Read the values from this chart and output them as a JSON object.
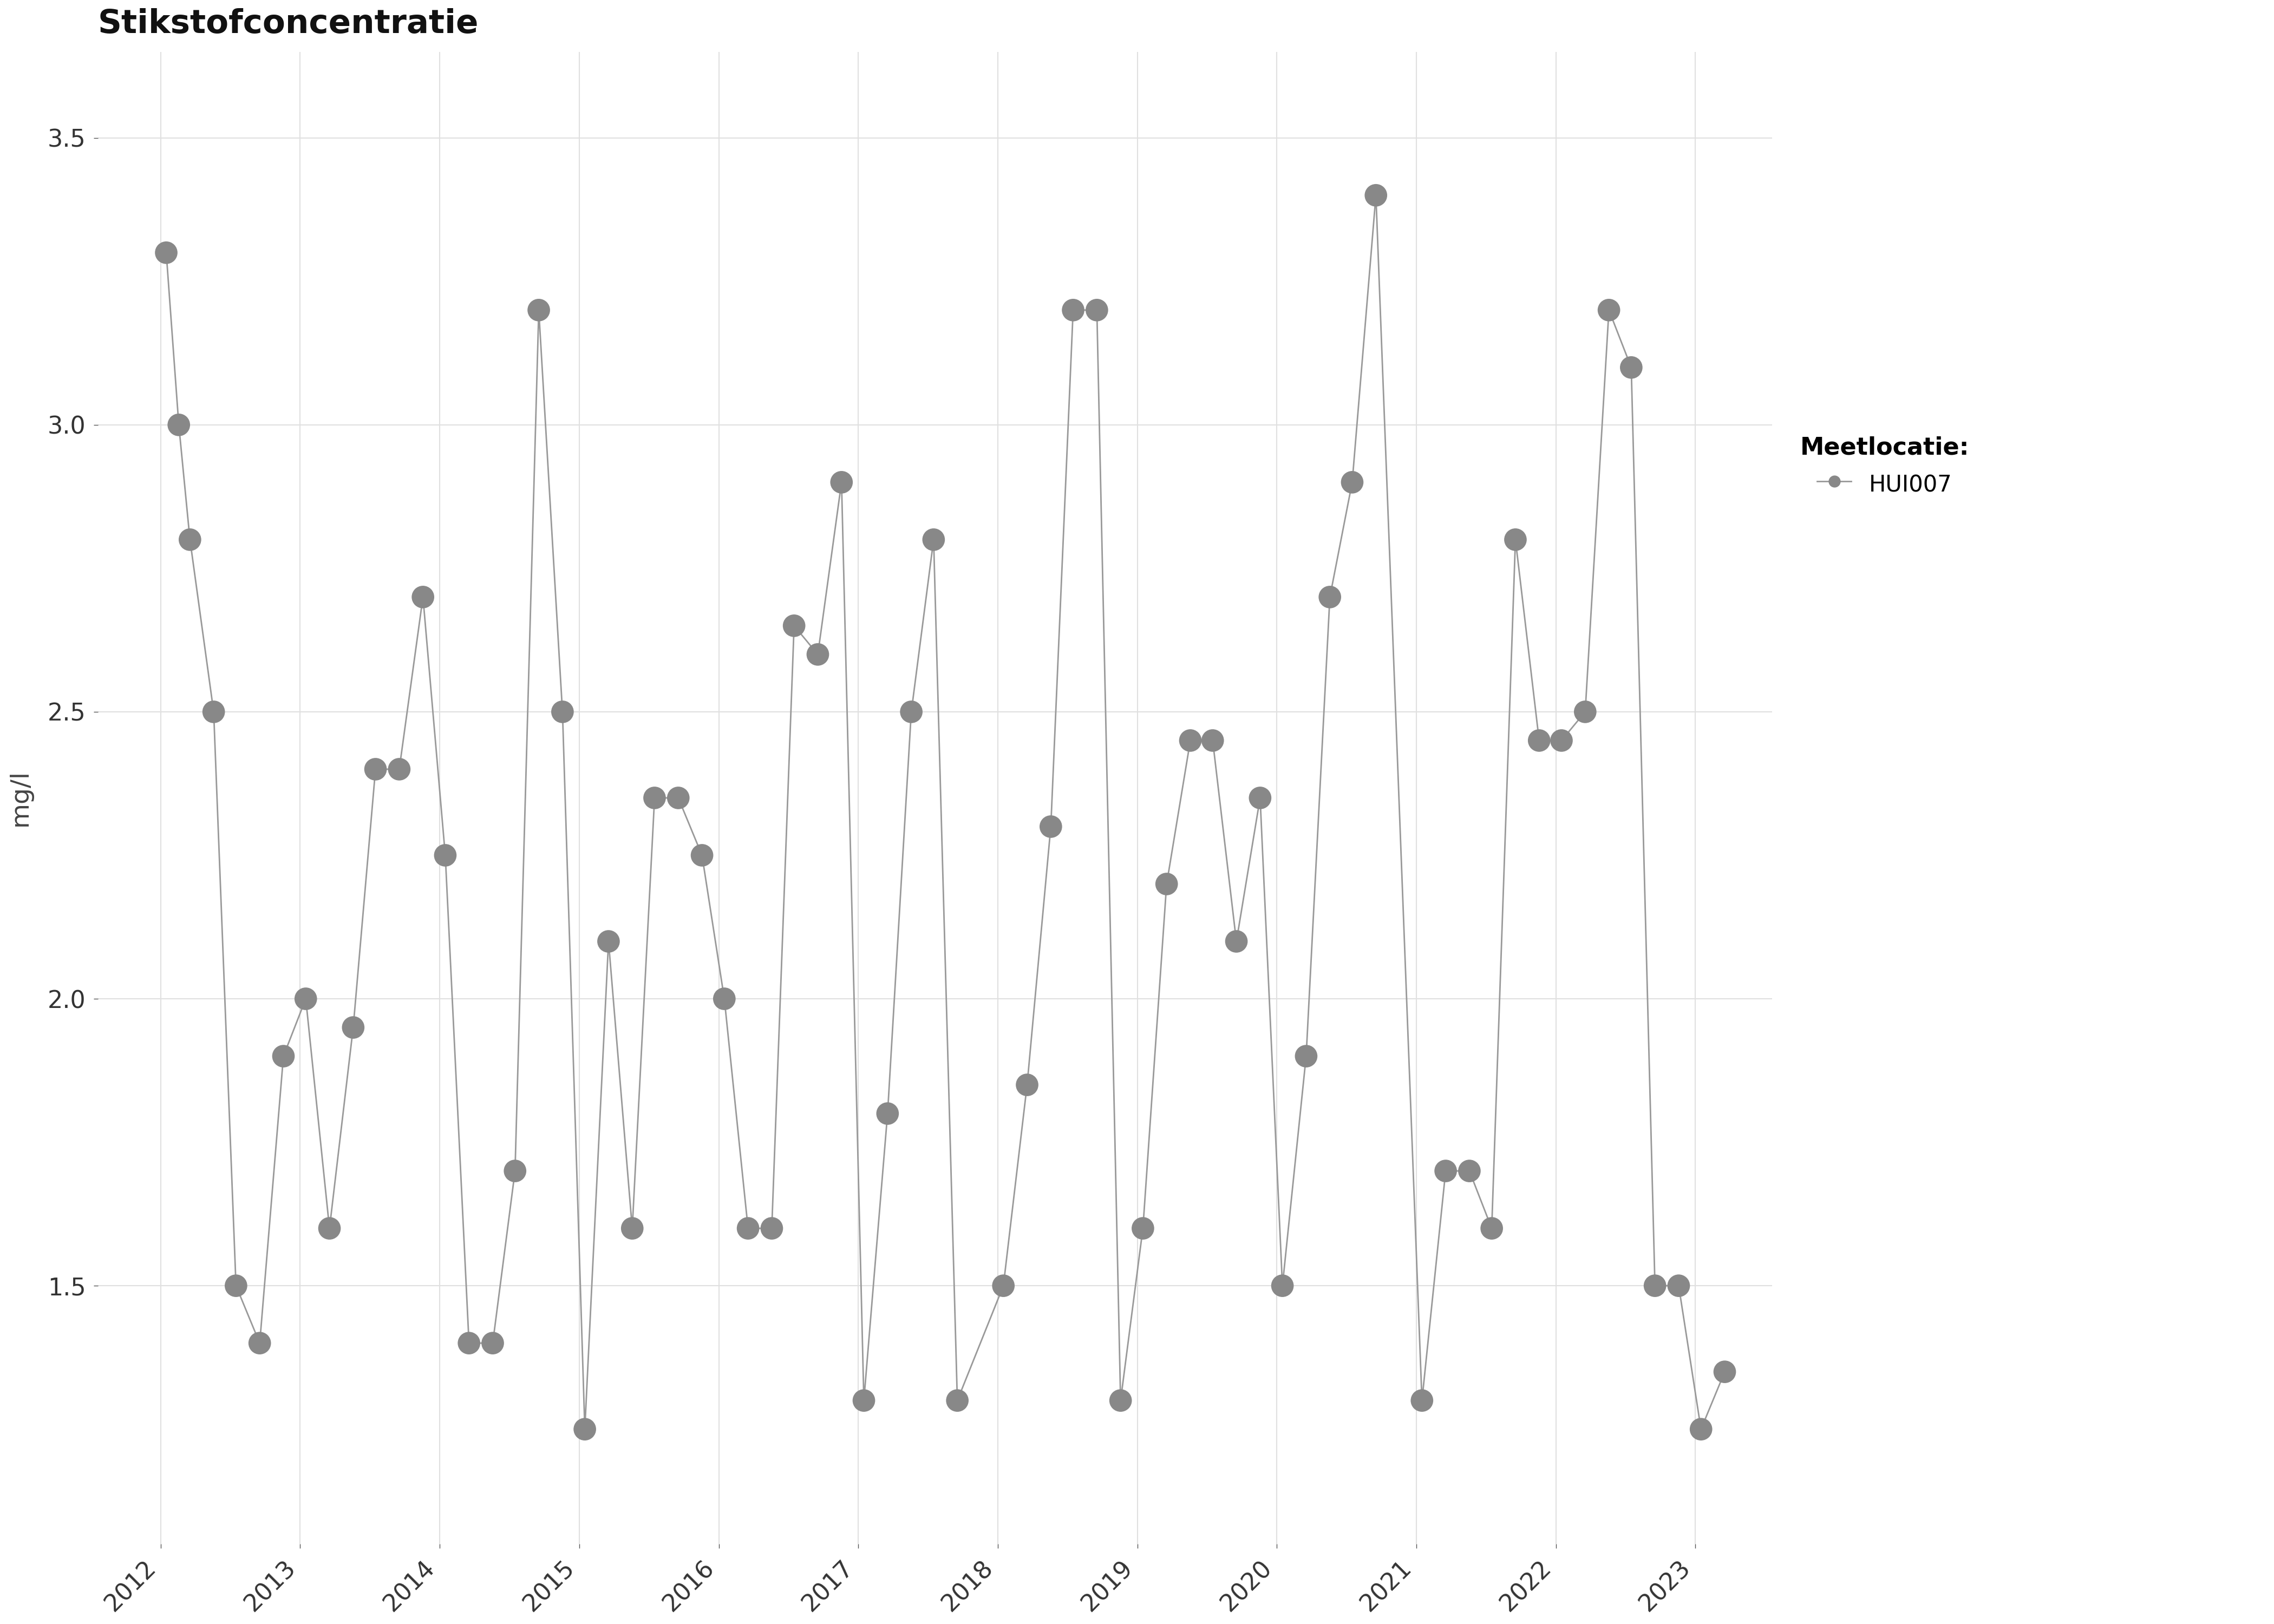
{
  "title": "Stikstofconcentratie",
  "ylabel": "mg/l",
  "legend_title": "Meetlocatie:",
  "legend_label": "HUI007",
  "background_color": "#ffffff",
  "plot_bg_color": "#ffffff",
  "grid_color": "#e0e0e0",
  "line_color": "#999999",
  "marker_color": "#888888",
  "ylim": [
    1.05,
    3.65
  ],
  "yticks": [
    1.5,
    2.0,
    2.5,
    3.0,
    3.5
  ],
  "x_values": [
    2012.04,
    2012.13,
    2012.21,
    2012.38,
    2012.54,
    2012.71,
    2012.88,
    2013.04,
    2013.21,
    2013.38,
    2013.54,
    2013.71,
    2013.88,
    2014.04,
    2014.21,
    2014.38,
    2014.54,
    2014.71,
    2014.88,
    2015.04,
    2015.21,
    2015.38,
    2015.54,
    2015.71,
    2015.88,
    2016.04,
    2016.21,
    2016.38,
    2016.54,
    2016.71,
    2016.88,
    2017.04,
    2017.21,
    2017.38,
    2017.54,
    2017.71,
    2018.04,
    2018.21,
    2018.38,
    2018.54,
    2018.71,
    2018.88,
    2019.04,
    2019.21,
    2019.38,
    2019.54,
    2019.71,
    2019.88,
    2020.04,
    2020.21,
    2020.38,
    2020.54,
    2020.71,
    2021.04,
    2021.21,
    2021.38,
    2021.54,
    2021.71,
    2021.88,
    2022.04,
    2022.21,
    2022.38,
    2022.54,
    2022.71,
    2022.88,
    2023.04,
    2023.21
  ],
  "y_values": [
    3.3,
    3.0,
    2.8,
    2.5,
    1.5,
    1.4,
    1.9,
    2.0,
    1.6,
    1.95,
    2.4,
    2.4,
    2.7,
    2.25,
    1.4,
    1.4,
    1.7,
    3.2,
    2.5,
    1.25,
    2.1,
    1.6,
    2.35,
    2.35,
    2.25,
    2.0,
    1.6,
    1.6,
    2.65,
    2.6,
    2.9,
    1.3,
    1.8,
    2.5,
    2.8,
    1.3,
    1.5,
    1.85,
    2.3,
    3.2,
    3.2,
    1.3,
    1.6,
    2.2,
    2.45,
    2.45,
    2.1,
    2.35,
    1.5,
    1.9,
    2.7,
    2.9,
    3.4,
    1.3,
    1.7,
    1.7,
    1.6,
    2.8,
    2.45,
    2.45,
    2.5,
    3.2,
    3.1,
    1.5,
    1.5,
    1.25,
    1.35
  ],
  "xticks": [
    2012,
    2013,
    2014,
    2015,
    2016,
    2017,
    2018,
    2019,
    2020,
    2021,
    2022,
    2023
  ],
  "xlim": [
    2011.55,
    2023.55
  ]
}
